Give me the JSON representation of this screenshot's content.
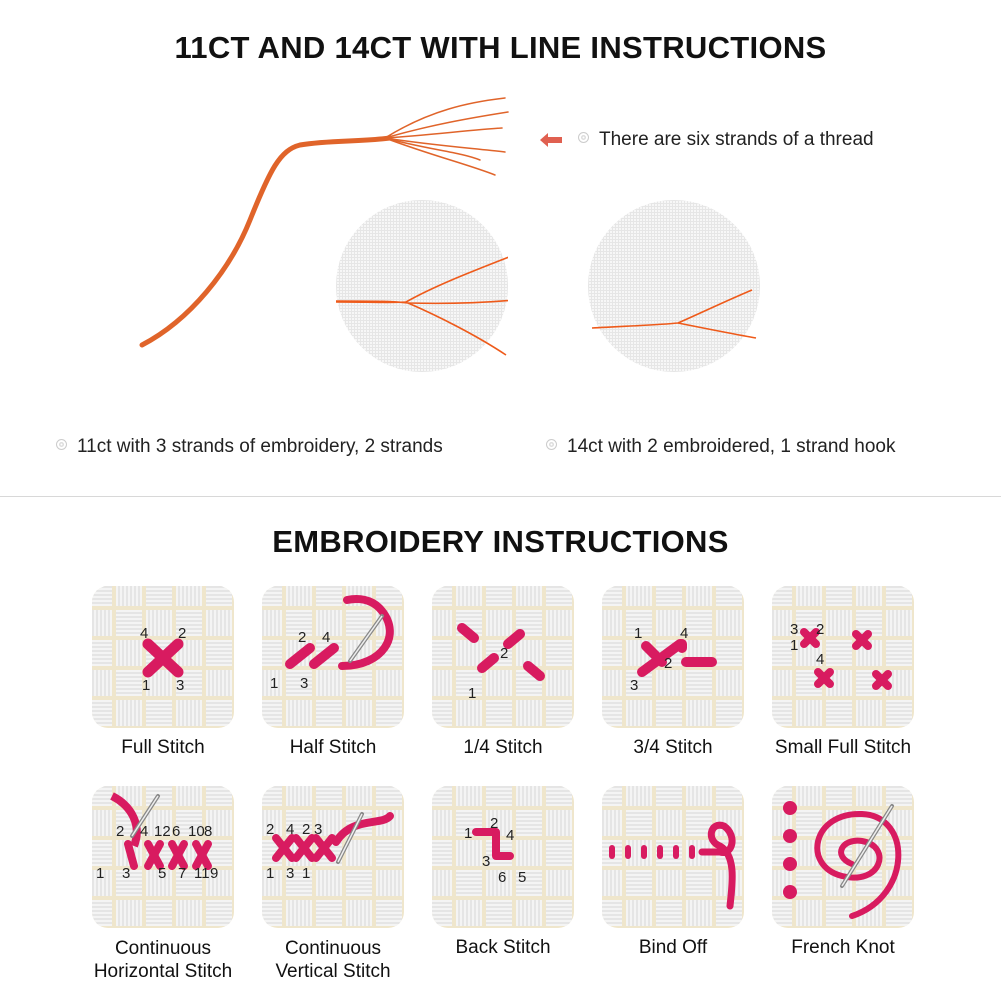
{
  "top": {
    "title": "11CT AND 14CT WITH LINE INSTRUCTIONS",
    "thread_note": "There are six strands of a thread",
    "caption_11ct": "11ct with 3 strands of embroidery, 2 strands",
    "caption_14ct": "14ct with 2 embroidered, 1 strand hook",
    "thread_color": "#e0642a",
    "arrow_color": "#e06050"
  },
  "bottom": {
    "title": "EMBROIDERY INSTRUCTIONS",
    "stitch_color": "#d81b60",
    "tiles": [
      {
        "label": "Full Stitch",
        "numbers": [
          "4",
          "2",
          "1",
          "3"
        ]
      },
      {
        "label": "Half Stitch",
        "numbers": [
          "2",
          "4",
          "1",
          "3"
        ]
      },
      {
        "label": "1/4 Stitch",
        "numbers": [
          "2",
          "1"
        ]
      },
      {
        "label": "3/4 Stitch",
        "numbers": [
          "1",
          "4",
          "2",
          "3"
        ]
      },
      {
        "label": "Small Full Stitch",
        "numbers": [
          "3",
          "2",
          "1",
          "4"
        ]
      },
      {
        "label": "Continuous Horizontal Stitch",
        "numbers": [
          "2",
          "4",
          "12",
          "6",
          "10",
          "8",
          "1",
          "3",
          "5",
          "7",
          "11",
          "9"
        ]
      },
      {
        "label": "Continuous Vertical Stitch",
        "numbers": [
          "2",
          "4",
          "2",
          "3",
          "1",
          "3",
          "1"
        ]
      },
      {
        "label": "Back Stitch",
        "numbers": [
          "1",
          "2",
          "4",
          "3",
          "6",
          "5"
        ]
      },
      {
        "label": "Bind Off",
        "numbers": []
      },
      {
        "label": "French Knot",
        "numbers": []
      }
    ]
  }
}
